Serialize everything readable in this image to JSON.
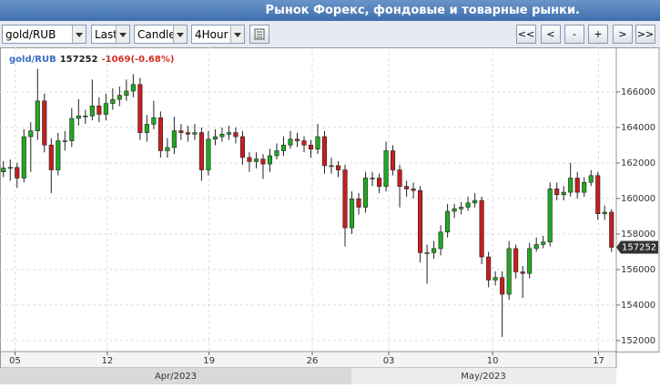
{
  "header": {
    "title": "Рынок Форекс, фондовые и товарные рынки."
  },
  "toolbar": {
    "symbol": "gold/RUB",
    "price_type": "Last",
    "chart_type": "Candle",
    "period": "4Hour",
    "nav": [
      "<<",
      "<",
      "-",
      "+",
      ">",
      ">>"
    ]
  },
  "chart_data": {
    "type": "candlestick",
    "symbol": "gold/RUB",
    "last": 157252,
    "change": "-1069(-0.68%)",
    "up_color": "#22a822",
    "down_color": "#c81e1e",
    "grid": true,
    "ylim": [
      151380,
      168510
    ],
    "yticks": [
      152000,
      154000,
      156000,
      158000,
      160000,
      162000,
      164000,
      166000
    ],
    "xlim": [
      -0.5,
      89.7
    ],
    "xticks": [
      {
        "value": 1.7,
        "label": "05"
      },
      {
        "value": 15.2,
        "label": "12"
      },
      {
        "value": 30.1,
        "label": "19"
      },
      {
        "value": 45.2,
        "label": "26"
      },
      {
        "value": 56.4,
        "label": "03"
      },
      {
        "value": 71.6,
        "label": "10"
      },
      {
        "value": 87.1,
        "label": "17"
      }
    ],
    "months": [
      "Apr/2023",
      "May/2023"
    ],
    "candles": [
      [
        161500,
        162100,
        161200,
        161710
      ],
      [
        161710,
        162200,
        161000,
        161750
      ],
      [
        161750,
        162000,
        160600,
        161150
      ],
      [
        161150,
        163900,
        160900,
        163480
      ],
      [
        163480,
        164300,
        161500,
        163810
      ],
      [
        163810,
        167300,
        163300,
        165490
      ],
      [
        165490,
        165900,
        162600,
        163010
      ],
      [
        163010,
        163400,
        160300,
        161610
      ],
      [
        161610,
        163700,
        161300,
        163250
      ],
      [
        163250,
        163800,
        162700,
        163250
      ],
      [
        163250,
        165100,
        162900,
        164510
      ],
      [
        164510,
        165600,
        164100,
        164650
      ],
      [
        164650,
        165000,
        164200,
        164650
      ],
      [
        164650,
        166700,
        164400,
        165210
      ],
      [
        165210,
        165700,
        164300,
        164740
      ],
      [
        164740,
        165900,
        164400,
        165350
      ],
      [
        165350,
        166200,
        165000,
        165580
      ],
      [
        165580,
        166300,
        165200,
        165810
      ],
      [
        165810,
        166700,
        165500,
        166050
      ],
      [
        166050,
        167000,
        165700,
        166420
      ],
      [
        166420,
        166800,
        163300,
        163710
      ],
      [
        163710,
        164700,
        163200,
        164180
      ],
      [
        164180,
        165500,
        163900,
        164550
      ],
      [
        164550,
        164900,
        162300,
        162690
      ],
      [
        162690,
        163400,
        162300,
        162870
      ],
      [
        162870,
        164600,
        162500,
        163810
      ],
      [
        163810,
        164200,
        163300,
        163710
      ],
      [
        163710,
        164100,
        163200,
        163620
      ],
      [
        163620,
        164200,
        163300,
        163710
      ],
      [
        163710,
        164000,
        161000,
        161610
      ],
      [
        161610,
        163800,
        161300,
        163340
      ],
      [
        163340,
        163900,
        163000,
        163480
      ],
      [
        163480,
        164000,
        163200,
        163620
      ],
      [
        163620,
        164100,
        163300,
        163710
      ],
      [
        163710,
        164000,
        163100,
        163480
      ],
      [
        163480,
        163800,
        161900,
        162310
      ],
      [
        162310,
        162600,
        161500,
        162080
      ],
      [
        162080,
        162600,
        161700,
        162220
      ],
      [
        162220,
        162500,
        161100,
        161940
      ],
      [
        161940,
        162800,
        161500,
        162410
      ],
      [
        162410,
        163100,
        162200,
        162690
      ],
      [
        162690,
        163500,
        162400,
        163010
      ],
      [
        163010,
        163800,
        162800,
        163340
      ],
      [
        163340,
        163700,
        162900,
        163250
      ],
      [
        163250,
        163500,
        162600,
        163010
      ],
      [
        163010,
        163300,
        162300,
        162780
      ],
      [
        162780,
        164200,
        162500,
        163480
      ],
      [
        163480,
        163800,
        161400,
        161850
      ],
      [
        161850,
        162300,
        161400,
        161850
      ],
      [
        161850,
        162100,
        161200,
        161610
      ],
      [
        161610,
        161900,
        157300,
        158350
      ],
      [
        158350,
        160400,
        158000,
        159980
      ],
      [
        159980,
        160300,
        159100,
        159510
      ],
      [
        159510,
        161500,
        159200,
        161150
      ],
      [
        161150,
        161500,
        160700,
        161150
      ],
      [
        161150,
        161400,
        160300,
        160680
      ],
      [
        160680,
        163200,
        160400,
        162690
      ],
      [
        162690,
        163000,
        161300,
        161610
      ],
      [
        161610,
        161900,
        159500,
        160680
      ],
      [
        160680,
        161000,
        160100,
        160540
      ],
      [
        160540,
        160900,
        160000,
        160450
      ],
      [
        160450,
        160700,
        156400,
        156950
      ],
      [
        156950,
        157400,
        155200,
        156950
      ],
      [
        156950,
        157600,
        156600,
        157180
      ],
      [
        157180,
        158500,
        156800,
        158110
      ],
      [
        158110,
        159700,
        157800,
        159280
      ],
      [
        159280,
        159700,
        158900,
        159420
      ],
      [
        159420,
        159800,
        159100,
        159510
      ],
      [
        159510,
        160100,
        159300,
        159750
      ],
      [
        159750,
        160300,
        159500,
        159890
      ],
      [
        159890,
        160100,
        156300,
        156710
      ],
      [
        156710,
        157000,
        155000,
        155410
      ],
      [
        155410,
        155900,
        155100,
        155550
      ],
      [
        155550,
        155900,
        152200,
        154610
      ],
      [
        154610,
        157600,
        154300,
        157180
      ],
      [
        157180,
        157400,
        155500,
        155870
      ],
      [
        155870,
        156200,
        154400,
        155780
      ],
      [
        155780,
        157500,
        155500,
        157180
      ],
      [
        157180,
        157800,
        157000,
        157410
      ],
      [
        157410,
        157900,
        157200,
        157550
      ],
      [
        157550,
        160900,
        157300,
        160540
      ],
      [
        160540,
        160900,
        159900,
        160210
      ],
      [
        160210,
        160700,
        159900,
        160350
      ],
      [
        160350,
        162000,
        160100,
        161150
      ],
      [
        161150,
        161500,
        160000,
        160350
      ],
      [
        160350,
        161200,
        160100,
        160910
      ],
      [
        160910,
        161600,
        160700,
        161290
      ],
      [
        161290,
        161500,
        158800,
        159140
      ],
      [
        159140,
        159600,
        158800,
        159230
      ],
      [
        159230,
        159400,
        157000,
        157252
      ]
    ]
  }
}
